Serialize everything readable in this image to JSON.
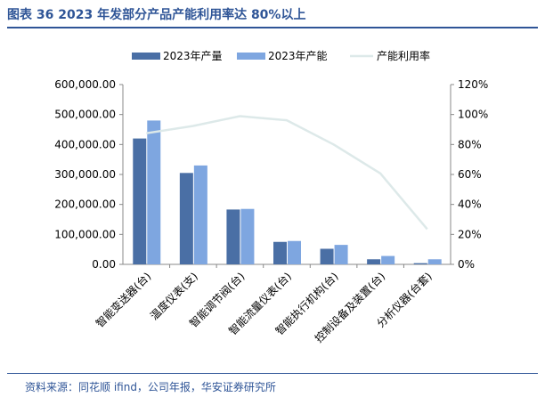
{
  "title": "图表 36 2023 年发部分产品产能利用率达 80%以上",
  "source": "资料来源：同花顺 ifind，公司年报，华安证券研究所",
  "chart_data": {
    "type": "bar",
    "categories": [
      "智能变送器(台)",
      "温度仪表(支)",
      "智能调节阀(台)",
      "智能流量仪表(台)",
      "智能执行机构(台)",
      "控制设备及装置(台)",
      "分析仪器(台套)"
    ],
    "series": [
      {
        "name": "2023年产量",
        "type": "bar",
        "axis": "left",
        "color": "#4a6fa5",
        "values": [
          420000,
          305000,
          183000,
          75000,
          52000,
          17000,
          4000
        ]
      },
      {
        "name": "2023年产能",
        "type": "bar",
        "axis": "left",
        "color": "#7ea6e0",
        "values": [
          480000,
          330000,
          185000,
          78000,
          65000,
          28000,
          17000
        ]
      },
      {
        "name": "产能利用率",
        "type": "line",
        "axis": "right",
        "color": "#dde9e9",
        "values": [
          0.875,
          0.924,
          0.989,
          0.962,
          0.8,
          0.607,
          0.235
        ]
      }
    ],
    "y_left": {
      "min": 0,
      "max": 600000,
      "ticks": [
        "0.00",
        "100,000.00",
        "200,000.00",
        "300,000.00",
        "400,000.00",
        "500,000.00",
        "600,000.00"
      ]
    },
    "y_right": {
      "min": 0,
      "max": 1.2,
      "ticks": [
        "0%",
        "20%",
        "40%",
        "60%",
        "80%",
        "100%",
        "120%"
      ]
    },
    "legend_position": "top",
    "grid": false
  }
}
